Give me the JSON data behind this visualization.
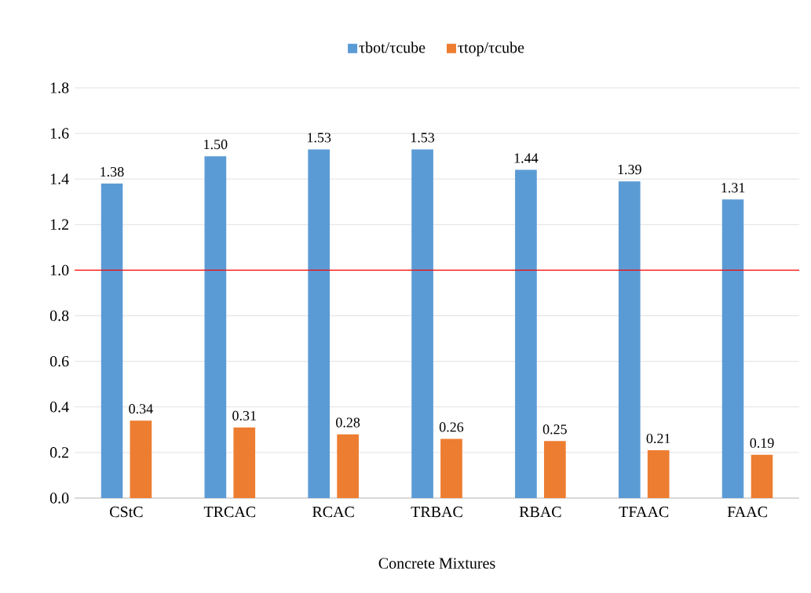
{
  "chart_data": {
    "type": "bar",
    "xlabel": "Concrete Mixtures",
    "categories": [
      "CStC",
      "TRCAC",
      "RCAC",
      "TRBAC",
      "RBAC",
      "TFAAC",
      "FAAC"
    ],
    "series": [
      {
        "name": "τbot/τcube",
        "color": "#5b9bd5",
        "values": [
          1.38,
          1.5,
          1.53,
          1.53,
          1.44,
          1.39,
          1.31
        ],
        "value_labels": [
          "1.38",
          "1.50",
          "1.53",
          "1.53",
          "1.44",
          "1.39",
          "1.31"
        ]
      },
      {
        "name": "τtop/τcube",
        "color": "#ed7d31",
        "values": [
          0.34,
          0.31,
          0.28,
          0.26,
          0.25,
          0.21,
          0.19
        ],
        "value_labels": [
          "0.34",
          "0.31",
          "0.28",
          "0.26",
          "0.25",
          "0.21",
          "0.19"
        ]
      }
    ],
    "ylim": [
      0,
      1.8
    ],
    "yticks": [
      {
        "value": 0,
        "label": "0.0"
      },
      0.2,
      0.4,
      0.6,
      0.8,
      {
        "value": 1,
        "label": "1.0"
      },
      1.2,
      1.4,
      1.6,
      1.8
    ],
    "ref_lines": [
      {
        "axis": "y",
        "value": 1.0,
        "color": "#ff0000"
      }
    ],
    "grid": "y",
    "legend": "top"
  }
}
